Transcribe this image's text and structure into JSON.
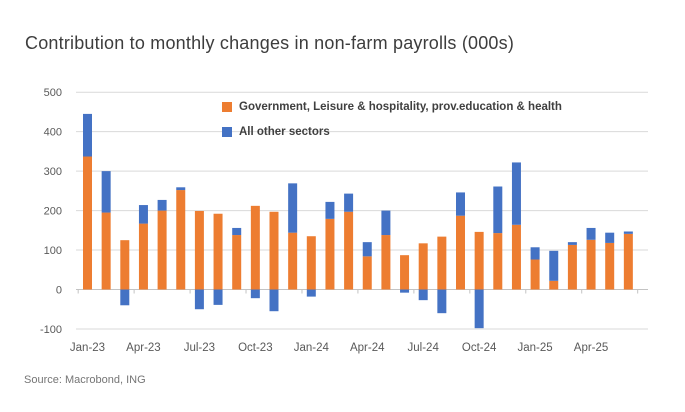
{
  "title": "Contribution to monthly changes in non-farm payrolls (000s)",
  "source": "Source: Macrobond, ING",
  "legend": [
    {
      "label": "Government, Leisure & hospitality, prov.education & health",
      "color": "#ED7D31"
    },
    {
      "label": "All other sectors",
      "color": "#4472C4"
    }
  ],
  "colors": {
    "government_series": "#ED7D31",
    "other_sectors_series": "#4472C4",
    "gridline": "#D9D9D9",
    "zero_axis": "#C3C3C3",
    "axis_text": "#595959",
    "title_text": "#3d3d3d"
  },
  "chart_data": {
    "type": "bar",
    "stacked": true,
    "title": "Contribution to monthly changes in non-farm payrolls (000s)",
    "xlabel": "",
    "ylabel": "",
    "ylim": [
      -100,
      500
    ],
    "y_ticks": [
      -100,
      0,
      100,
      200,
      300,
      400,
      500
    ],
    "grid": "horizontal",
    "legend_position": "top-inside",
    "categories": [
      "Jan-23",
      "Feb-23",
      "Mar-23",
      "Apr-23",
      "May-23",
      "Jun-23",
      "Jul-23",
      "Aug-23",
      "Sep-23",
      "Oct-23",
      "Nov-23",
      "Dec-23",
      "Jan-24",
      "Feb-24",
      "Mar-24",
      "Apr-24",
      "May-24",
      "Jun-24",
      "Jul-24",
      "Aug-24",
      "Sep-24",
      "Oct-24",
      "Nov-24",
      "Dec-24",
      "Jan-25",
      "Feb-25",
      "Mar-25",
      "Apr-25",
      "May-25",
      "Jun-25"
    ],
    "x_tick_labels": [
      "Jan-23",
      "Apr-23",
      "Jul-23",
      "Oct-23",
      "Jan-24",
      "Apr-24",
      "Jul-24",
      "Oct-24",
      "Jan-25",
      "Apr-25"
    ],
    "x_tick_every": 3,
    "series": [
      {
        "name": "Government, Leisure & hospitality, prov.education & health",
        "color": "#ED7D31",
        "values": [
          337,
          195,
          125,
          167,
          200,
          252,
          199,
          192,
          138,
          212,
          197,
          144,
          135,
          179,
          197,
          84,
          138,
          87,
          117,
          134,
          187,
          146,
          143,
          164,
          76,
          22,
          113,
          126,
          118,
          141
        ]
      },
      {
        "name": "All other sectors",
        "color": "#4472C4",
        "values": [
          108,
          105,
          -40,
          47,
          27,
          7,
          -50,
          -39,
          18,
          -22,
          -55,
          125,
          -18,
          43,
          46,
          36,
          62,
          -8,
          -27,
          -60,
          59,
          -98,
          118,
          158,
          31,
          76,
          7,
          30,
          26,
          6
        ]
      }
    ]
  }
}
